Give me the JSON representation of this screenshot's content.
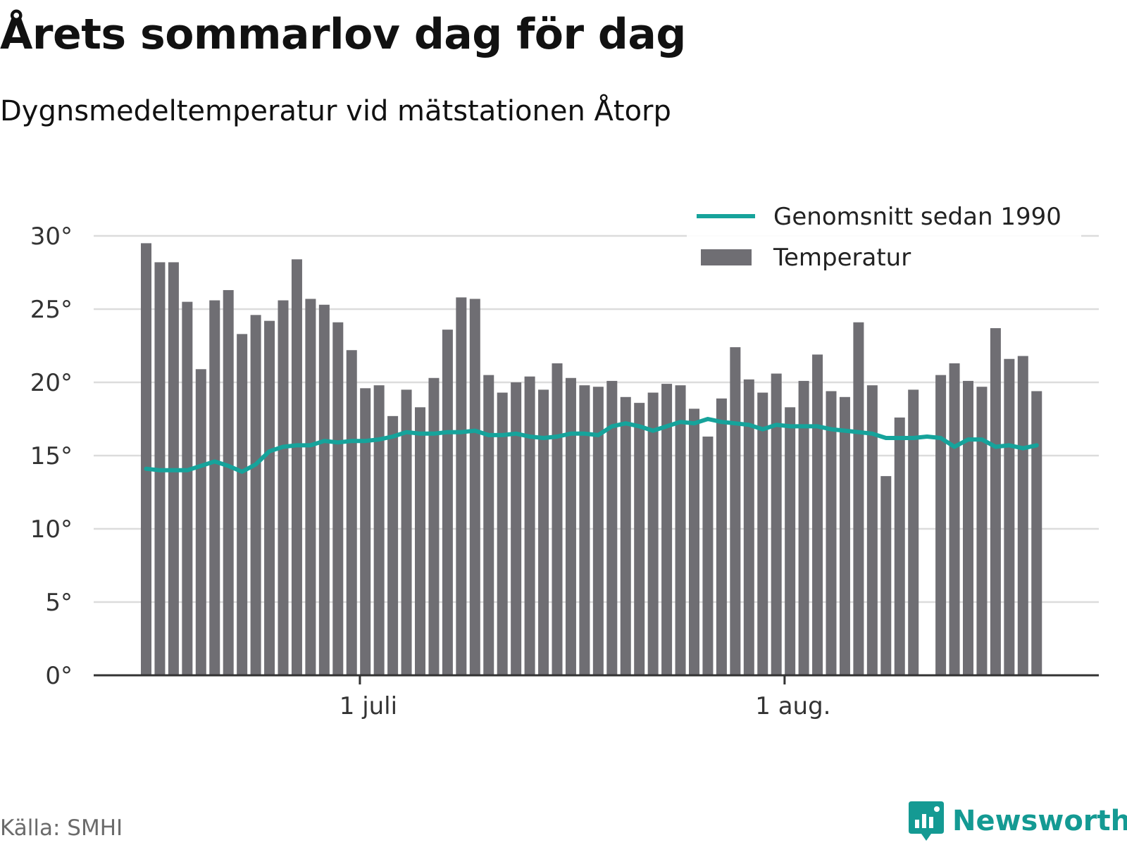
{
  "title": "Årets sommarlov dag för dag",
  "subtitle": "Dygnsmedeltemperatur vid mätstationen Åtorp",
  "source": "Källa: SMHI",
  "brand": "Newsworthy",
  "colors": {
    "bar": "#6f6e73",
    "line": "#16a39b",
    "grid": "#dcdcdc",
    "axis": "#333333",
    "brand": "#149a93"
  },
  "chart_data": {
    "type": "bar",
    "yticks": [
      0,
      5,
      10,
      15,
      20,
      25,
      30
    ],
    "ytick_labels": [
      "0°",
      "5°",
      "10°",
      "15°",
      "20°",
      "25°",
      "30°"
    ],
    "ylim": [
      0,
      30
    ],
    "xticks": [
      {
        "label": "1 juli",
        "index": 16
      },
      {
        "label": "1 aug.",
        "index": 47
      }
    ],
    "legend_position": "top-right",
    "grid": true,
    "series": [
      {
        "name": "Temperatur",
        "kind": "bar",
        "values": [
          29.5,
          28.2,
          28.2,
          25.5,
          20.9,
          25.6,
          26.3,
          23.3,
          24.6,
          24.2,
          25.6,
          28.4,
          25.7,
          25.3,
          24.1,
          22.2,
          19.6,
          19.8,
          17.7,
          19.5,
          18.3,
          20.3,
          23.6,
          25.8,
          25.7,
          20.5,
          19.3,
          20.0,
          20.4,
          19.5,
          21.3,
          20.3,
          19.8,
          19.7,
          20.1,
          19.0,
          18.6,
          19.3,
          19.9,
          19.8,
          18.2,
          16.3,
          18.9,
          22.4,
          20.2,
          19.3,
          20.6,
          18.3,
          20.1,
          21.9,
          19.4,
          19.0,
          24.1,
          19.8,
          13.6,
          17.6,
          19.5,
          null,
          20.5,
          21.3,
          20.1,
          19.7,
          23.7,
          21.6,
          21.8,
          19.4
        ]
      },
      {
        "name": "Genomsnitt sedan 1990",
        "kind": "line",
        "values": [
          14.1,
          14.0,
          14.0,
          14.0,
          14.3,
          14.6,
          14.3,
          13.9,
          14.4,
          15.3,
          15.6,
          15.7,
          15.7,
          16.0,
          15.9,
          16.0,
          16.0,
          16.1,
          16.3,
          16.6,
          16.5,
          16.5,
          16.6,
          16.6,
          16.7,
          16.4,
          16.4,
          16.5,
          16.3,
          16.2,
          16.3,
          16.5,
          16.5,
          16.4,
          17.0,
          17.2,
          17.0,
          16.7,
          17.0,
          17.3,
          17.2,
          17.5,
          17.3,
          17.2,
          17.1,
          16.8,
          17.1,
          17.0,
          17.0,
          17.0,
          16.8,
          16.7,
          16.6,
          16.5,
          16.2,
          16.2,
          16.2,
          16.3,
          16.2,
          15.6,
          16.1,
          16.1,
          15.6,
          15.7,
          15.5,
          15.7
        ]
      }
    ]
  }
}
